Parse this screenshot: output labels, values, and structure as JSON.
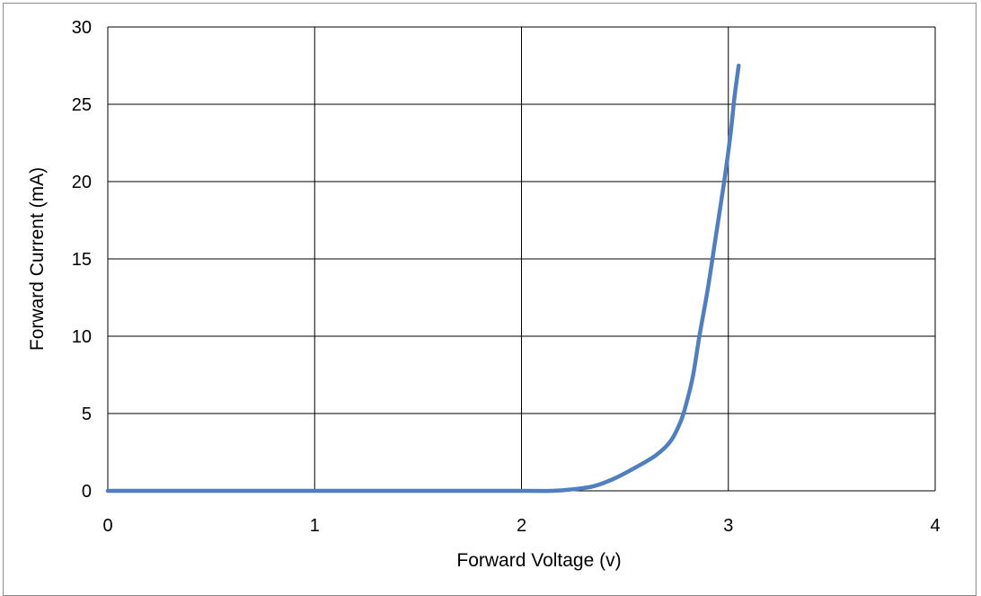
{
  "chart_data": {
    "type": "line",
    "title": "",
    "xlabel": "Forward Voltage (v)",
    "ylabel": "Forward Current (mA)",
    "xlim": [
      0,
      4
    ],
    "ylim": [
      0,
      30
    ],
    "xticks": [
      "0",
      "1",
      "2",
      "3",
      "4"
    ],
    "yticks": [
      "0",
      "5",
      "10",
      "15",
      "20",
      "25",
      "30"
    ],
    "grid": true,
    "legend": "none",
    "series_color": "#4f7fbf",
    "series": [
      {
        "x": [
          0,
          0.5,
          1.0,
          1.5,
          2.0,
          2.15,
          2.25,
          2.35,
          2.45,
          2.55,
          2.65,
          2.72,
          2.77,
          2.8,
          2.83,
          2.86,
          2.9,
          2.94,
          2.98,
          3.01,
          3.03,
          3.05
        ],
        "y": [
          0,
          0,
          0,
          0,
          0,
          0,
          0.1,
          0.3,
          0.8,
          1.5,
          2.3,
          3.2,
          4.5,
          5.8,
          7.5,
          10.0,
          13.0,
          16.5,
          20.0,
          23.0,
          25.5,
          27.5
        ]
      }
    ]
  }
}
